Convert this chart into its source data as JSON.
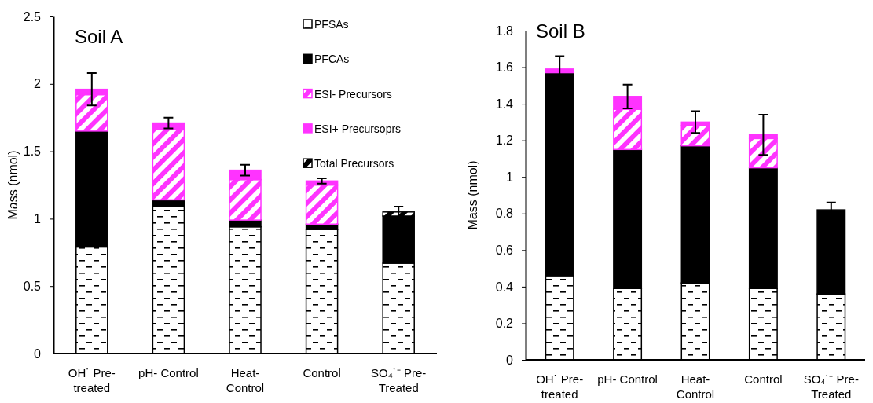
{
  "chart_data": [
    {
      "type": "bar",
      "stacked": true,
      "title": "Soil A",
      "ylabel": "Mass (nmol)",
      "categories": [
        "OH˙ Pre-treated",
        "pH- Control",
        "Heat-Control",
        "Control",
        "SO₄˙⁻ Pre-Treated"
      ],
      "ylim": [
        0,
        2.5
      ],
      "yticks": [
        0,
        0.5,
        1,
        1.5,
        2,
        2.5
      ],
      "grid": false,
      "legend": "top right",
      "series": [
        {
          "name": "PFSAs",
          "color": "#000000",
          "values": [
            0.79,
            1.09,
            0.94,
            0.92,
            0.67
          ]
        },
        {
          "name": "PFCAs",
          "color": "#000000",
          "values": [
            0.86,
            0.05,
            0.05,
            0.04,
            0.35
          ]
        },
        {
          "name": "ESI- Precursors",
          "color": "#ff33ff",
          "values": [
            0.27,
            0.52,
            0.3,
            0.29,
            0
          ]
        },
        {
          "name": "ESI+ Precursoprs",
          "color": "#ff33ff",
          "values": [
            0.04,
            0.05,
            0.07,
            0.03,
            0
          ],
          "errors": [
            0.12,
            0.04,
            0.04,
            0.02,
            null
          ]
        },
        {
          "name": "Total Precursors",
          "color": "#000000",
          "values": [
            0,
            0,
            0,
            0,
            0.03
          ],
          "errors": [
            null,
            null,
            null,
            null,
            0.04
          ]
        }
      ]
    },
    {
      "type": "bar",
      "stacked": true,
      "title": "Soil B",
      "ylabel": "Mass (nmol)",
      "categories": [
        "OH˙ Pre-treated",
        "pH- Control",
        "Heat-Control",
        "Control",
        "SO₄˙⁻ Pre-Treated"
      ],
      "ylim": [
        0,
        1.8
      ],
      "yticks": [
        0,
        0.2,
        0.4,
        0.6,
        0.8,
        1,
        1.2,
        1.4,
        1.6,
        1.8
      ],
      "grid": false,
      "legend": false,
      "series": [
        {
          "color": "#000000",
          "values": [
            0.46,
            0.39,
            0.42,
            0.39,
            0.36
          ]
        },
        {
          "color": "#000000",
          "values": [
            1.11,
            0.76,
            0.75,
            0.66,
            0.46
          ],
          "errors": [
            null,
            null,
            null,
            null,
            0.04
          ]
        },
        {
          "color": "#ff33ff",
          "values": [
            null,
            0.22,
            0.11,
            0.16,
            0
          ]
        },
        {
          "color": "#ff33ff",
          "values": [
            0.02,
            0.07,
            0.02,
            0.02,
            0
          ],
          "errors": [
            0.07,
            0.065,
            0.06,
            0.11,
            null
          ]
        },
        {
          "color": "#000000",
          "values": [
            0,
            0,
            0,
            0,
            0
          ]
        }
      ]
    }
  ]
}
